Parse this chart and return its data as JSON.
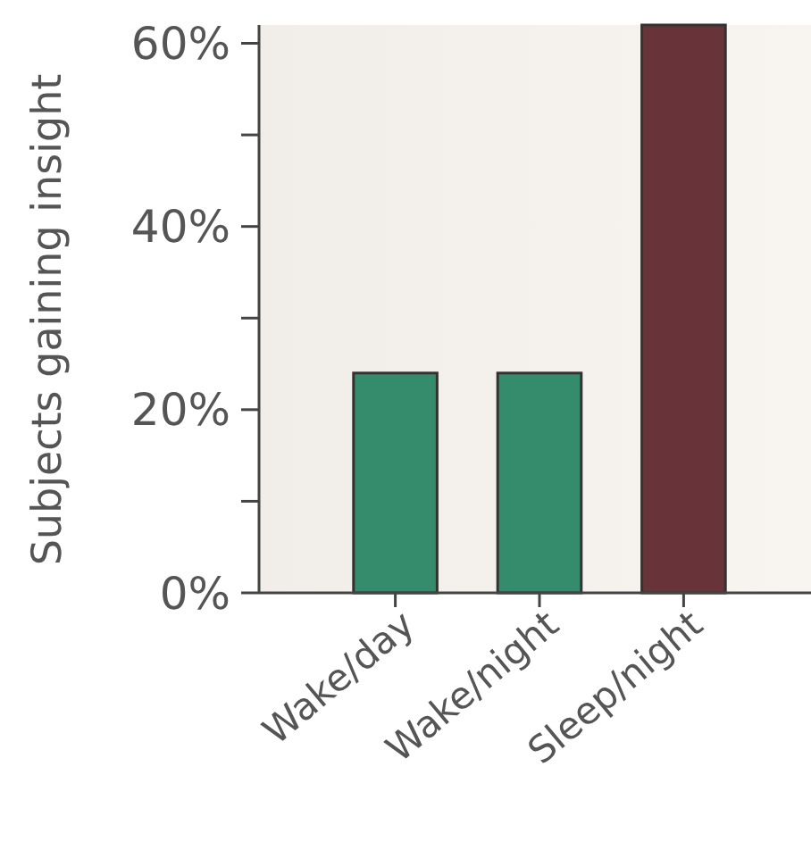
{
  "chart_data": {
    "type": "bar",
    "ylabel": "Subjects gaining insight",
    "categories": [
      "Wake/day",
      "Wake/night",
      "Sleep/night"
    ],
    "values": [
      24,
      24,
      62
    ],
    "colors": [
      "#358c6c",
      "#358c6c",
      "#683439"
    ],
    "ylim": [
      0,
      62
    ],
    "yticks": [
      {
        "value": 0,
        "label": "0%"
      },
      {
        "value": 10,
        "label": null
      },
      {
        "value": 20,
        "label": "20%"
      },
      {
        "value": 30,
        "label": null
      },
      {
        "value": 40,
        "label": "40%"
      },
      {
        "value": 50,
        "label": null
      },
      {
        "value": 60,
        "label": "60%"
      }
    ],
    "grid": false
  }
}
